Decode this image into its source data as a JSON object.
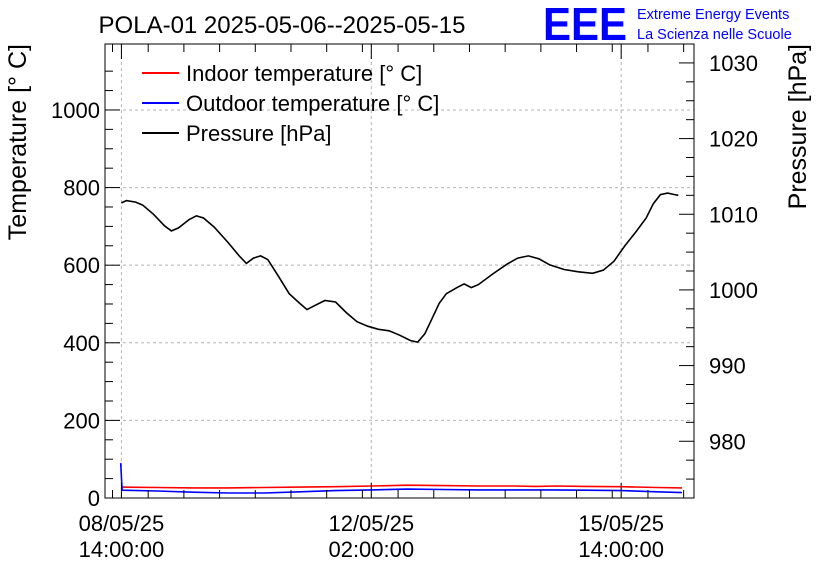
{
  "chart_data": {
    "type": "line",
    "title": "POLA-01 2025-05-06--2025-05-15",
    "logo": {
      "mark": "EEE",
      "line1": "Extreme Energy Events",
      "line2": "La Scienza nelle Scuole",
      "color": "#0000ff"
    },
    "ylabel": "Temperature [° C]",
    "y2label": "Pressure [hPa]",
    "ylim": [
      0,
      1170
    ],
    "y2lim": [
      972.5,
      1032.5
    ],
    "yticks": [
      "0",
      "200",
      "400",
      "600",
      "800",
      "1000"
    ],
    "y2ticks": [
      "980",
      "990",
      "1000",
      "1010",
      "1020",
      "1030"
    ],
    "xlim": [
      -0.23,
      8.02
    ],
    "xticks": [
      {
        "line1": "08/05/25",
        "line2": "14:00:00"
      },
      {
        "line1": "12/05/25",
        "line2": "02:00:00"
      },
      {
        "line1": "15/05/25",
        "line2": "14:00:00"
      }
    ],
    "x_units": "days from 08/05/25 14:00:00",
    "grid": true,
    "legend_position": "top-left",
    "series": [
      {
        "name": "Indoor temperature [° C]",
        "color": "#ff0000",
        "axis": "left",
        "points": [
          [
            0,
            28
          ],
          [
            0.5,
            27
          ],
          [
            1,
            26
          ],
          [
            1.5,
            26
          ],
          [
            2,
            27
          ],
          [
            2.5,
            28
          ],
          [
            3,
            29
          ],
          [
            3.5,
            31
          ],
          [
            4,
            33
          ],
          [
            4.5,
            32
          ],
          [
            5,
            31
          ],
          [
            5.5,
            31
          ],
          [
            5.8,
            30
          ],
          [
            6.1,
            31
          ],
          [
            6.5,
            30
          ],
          [
            7,
            29
          ],
          [
            7.5,
            27
          ],
          [
            7.85,
            26
          ]
        ]
      },
      {
        "name": "Outdoor temperature [° C]",
        "color": "#0000ff",
        "axis": "left",
        "points": [
          [
            -0.01,
            90
          ],
          [
            0.01,
            20
          ],
          [
            0.5,
            18
          ],
          [
            1,
            15
          ],
          [
            1.5,
            13
          ],
          [
            2,
            13
          ],
          [
            2.5,
            16
          ],
          [
            3,
            19
          ],
          [
            3.5,
            21
          ],
          [
            4,
            23
          ],
          [
            4.5,
            22
          ],
          [
            5,
            21
          ],
          [
            5.5,
            21
          ],
          [
            6,
            21
          ],
          [
            6.5,
            20
          ],
          [
            7,
            19
          ],
          [
            7.5,
            16
          ],
          [
            7.85,
            14
          ]
        ]
      },
      {
        "name": "Pressure [hPa]",
        "color": "#000000",
        "axis": "right",
        "points": [
          [
            0,
            1011.5
          ],
          [
            0.07,
            1011.8
          ],
          [
            0.2,
            1011.6
          ],
          [
            0.3,
            1011.2
          ],
          [
            0.45,
            1010
          ],
          [
            0.6,
            1008.5
          ],
          [
            0.7,
            1007.8
          ],
          [
            0.8,
            1008.2
          ],
          [
            0.95,
            1009.3
          ],
          [
            1.05,
            1009.8
          ],
          [
            1.15,
            1009.5
          ],
          [
            1.3,
            1008.3
          ],
          [
            1.5,
            1006.2
          ],
          [
            1.65,
            1004.5
          ],
          [
            1.75,
            1003.5
          ],
          [
            1.85,
            1004.2
          ],
          [
            1.95,
            1004.5
          ],
          [
            2.05,
            1004
          ],
          [
            2.2,
            1001.8
          ],
          [
            2.35,
            999.5
          ],
          [
            2.5,
            998.2
          ],
          [
            2.6,
            997.4
          ],
          [
            2.7,
            997.9
          ],
          [
            2.85,
            998.6
          ],
          [
            3,
            998.4
          ],
          [
            3.15,
            997
          ],
          [
            3.3,
            995.8
          ],
          [
            3.45,
            995.2
          ],
          [
            3.6,
            994.8
          ],
          [
            3.75,
            994.6
          ],
          [
            3.9,
            994
          ],
          [
            4.05,
            993.3
          ],
          [
            4.15,
            993.1
          ],
          [
            4.25,
            994.2
          ],
          [
            4.35,
            996.2
          ],
          [
            4.45,
            998.2
          ],
          [
            4.55,
            999.5
          ],
          [
            4.7,
            1000.3
          ],
          [
            4.8,
            1000.8
          ],
          [
            4.9,
            1000.3
          ],
          [
            5.0,
            1000.7
          ],
          [
            5.2,
            1002.1
          ],
          [
            5.4,
            1003.4
          ],
          [
            5.55,
            1004.2
          ],
          [
            5.7,
            1004.5
          ],
          [
            5.85,
            1004.1
          ],
          [
            6.0,
            1003.3
          ],
          [
            6.2,
            1002.7
          ],
          [
            6.4,
            1002.4
          ],
          [
            6.6,
            1002.2
          ],
          [
            6.75,
            1002.6
          ],
          [
            6.9,
            1003.8
          ],
          [
            7.05,
            1005.8
          ],
          [
            7.2,
            1007.6
          ],
          [
            7.35,
            1009.5
          ],
          [
            7.45,
            1011.4
          ],
          [
            7.55,
            1012.6
          ],
          [
            7.65,
            1012.8
          ],
          [
            7.75,
            1012.6
          ],
          [
            7.8,
            1012.5
          ]
        ]
      }
    ]
  }
}
